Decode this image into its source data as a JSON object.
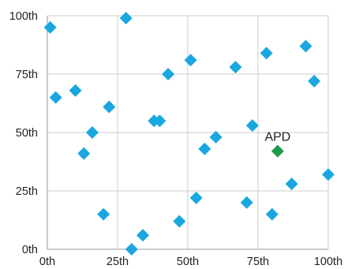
{
  "chart_data": {
    "type": "scatter",
    "title": "",
    "xlabel": "",
    "ylabel": "",
    "xlim": [
      0,
      100
    ],
    "ylim": [
      0,
      100
    ],
    "grid": true,
    "x_ticks": [
      0,
      25,
      50,
      75,
      100
    ],
    "y_ticks": [
      0,
      25,
      50,
      75,
      100
    ],
    "x_tick_labels": [
      "0th",
      "25th",
      "50th",
      "75th",
      "100th"
    ],
    "y_tick_labels": [
      "0th",
      "25th",
      "50th",
      "75th",
      "100th"
    ],
    "colors": {
      "default": "#1aa7e0",
      "highlight": "#1e9a4a"
    },
    "series": [
      {
        "points": [
          [
            1,
            95
          ],
          [
            3,
            65
          ],
          [
            10,
            68
          ],
          [
            13,
            41
          ],
          [
            16,
            50
          ],
          [
            22,
            61
          ],
          [
            28,
            99
          ],
          [
            40,
            55
          ],
          [
            43,
            75
          ],
          [
            51,
            81
          ],
          [
            38,
            55
          ],
          [
            20,
            15
          ],
          [
            30,
            0
          ],
          [
            34,
            6
          ],
          [
            47,
            12
          ],
          [
            53,
            22
          ],
          [
            56,
            43
          ],
          [
            60,
            48
          ],
          [
            67,
            78
          ],
          [
            71,
            20
          ],
          [
            73,
            53
          ],
          [
            78,
            84
          ],
          [
            80,
            15
          ],
          [
            87,
            28
          ],
          [
            92,
            87
          ],
          [
            95,
            72
          ],
          [
            100,
            32
          ]
        ]
      },
      {
        "points": [
          [
            82,
            42
          ]
        ],
        "labels": [
          "APD"
        ]
      }
    ]
  }
}
